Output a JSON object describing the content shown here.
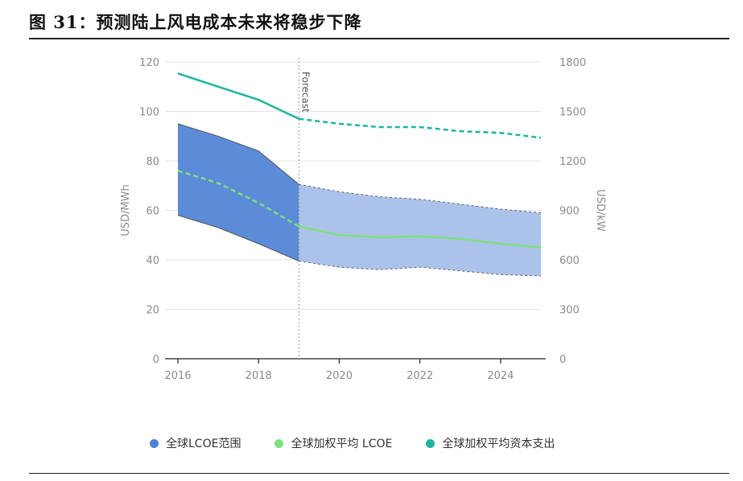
{
  "figure": {
    "title": "图 31：预测陆上风电成本未来将稳步下降"
  },
  "chart_data": {
    "type": "area",
    "x_ticks": [
      2016,
      2018,
      2020,
      2022,
      2024
    ],
    "xlim": [
      2016,
      2025
    ],
    "y_left": {
      "label": "USD/MWh",
      "ticks": [
        0,
        20,
        40,
        60,
        80,
        100,
        120
      ],
      "ylim": [
        0,
        120
      ]
    },
    "y_right": {
      "label": "USD/kW",
      "ticks": [
        0,
        300,
        600,
        900,
        1200,
        1500,
        1800
      ],
      "ylim": [
        0,
        1800
      ]
    },
    "grid": true,
    "forecast_marker": {
      "x": 2019,
      "label": "Forecast"
    },
    "series": [
      {
        "name": "全球LCOE范围",
        "kind": "range",
        "axis": "left",
        "color": "#4a7fd4",
        "forecast_color": "#a7c0ea",
        "x": [
          2016,
          2017,
          2018,
          2019,
          2020,
          2021,
          2022,
          2023,
          2024,
          2025
        ],
        "low": [
          58,
          53,
          46.5,
          39.5,
          37,
          36,
          37,
          35.5,
          34,
          33.5
        ],
        "high": [
          95,
          90,
          84,
          70.5,
          67.5,
          65.5,
          64.5,
          62.5,
          60.5,
          59
        ]
      },
      {
        "name": "全球加权平均 LCOE",
        "kind": "line",
        "axis": "left",
        "color": "#7ee07e",
        "x": [
          2016,
          2017,
          2018,
          2019,
          2020,
          2021,
          2022,
          2023,
          2024,
          2025
        ],
        "values": [
          76,
          71,
          63,
          53.5,
          50,
          49,
          49.5,
          48.5,
          46.5,
          45
        ]
      },
      {
        "name": "全球加权平均资本支出",
        "kind": "line",
        "axis": "right",
        "color": "#1fb5a0",
        "x": [
          2016,
          2017,
          2018,
          2019,
          2020,
          2021,
          2022,
          2023,
          2024,
          2025
        ],
        "values": [
          1730,
          1650,
          1570,
          1455,
          1425,
          1405,
          1405,
          1380,
          1370,
          1340
        ]
      }
    ],
    "legend_position": "bottom"
  }
}
